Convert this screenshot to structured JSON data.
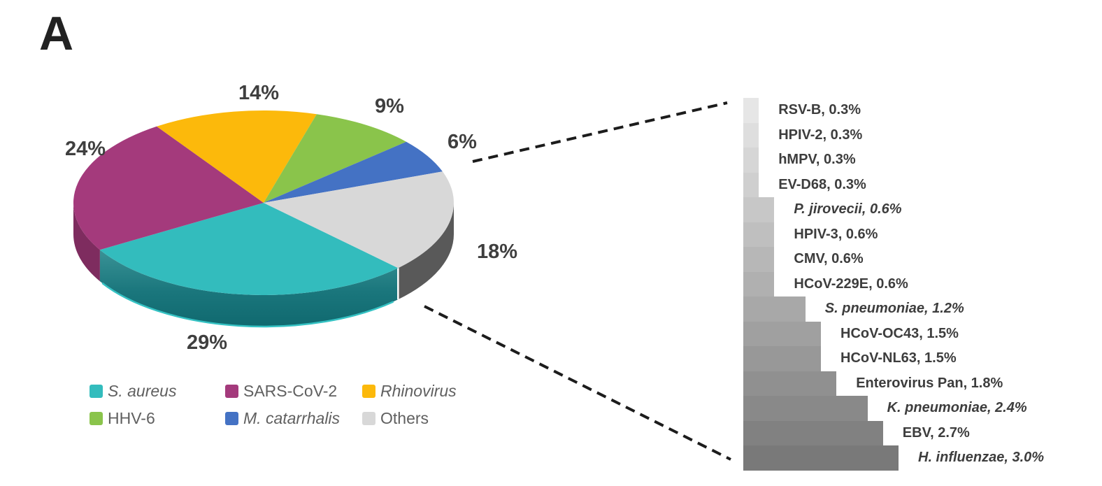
{
  "panel_label": "A",
  "chart_data": [
    {
      "type": "pie",
      "style": "3d",
      "start_angle_deg": 135,
      "direction": "clockwise",
      "slices": [
        {
          "label": "S. aureus",
          "value": 29,
          "display": "29%",
          "color": "#33BCBD",
          "side_color": "#1A767C",
          "italic": true
        },
        {
          "label": "SARS-CoV-2",
          "value": 24,
          "display": "24%",
          "color": "#A43A7C",
          "side_color": "#7E2C5F",
          "italic": false
        },
        {
          "label": "Rhinovirus",
          "value": 14,
          "display": "14%",
          "color": "#FCB90B",
          "side_color": "#C78F06",
          "italic": true
        },
        {
          "label": "HHV-6",
          "value": 9,
          "display": "9%",
          "color": "#8AC44B",
          "side_color": "#6A9A37",
          "italic": false
        },
        {
          "label": "M. catarrhalis",
          "value": 6,
          "display": "6%",
          "color": "#4472C4",
          "side_color": "#33559A",
          "italic": true
        },
        {
          "label": "Others",
          "value": 18,
          "display": "18%",
          "color": "#D8D8D8",
          "side_color": "#595959",
          "italic": false
        }
      ],
      "legend_position": "bottom"
    },
    {
      "type": "bar",
      "orientation": "horizontal",
      "note": "breakdown of the Others pie slice",
      "xlim": [
        0,
        3.0
      ],
      "bar_color_start": "#E6E6E6",
      "bar_color_end": "#797979",
      "items": [
        {
          "label": "RSV-B, 0.3%",
          "name": "RSV-B",
          "value": 0.3,
          "italic": false
        },
        {
          "label": "HPIV-2, 0.3%",
          "name": "HPIV-2",
          "value": 0.3,
          "italic": false
        },
        {
          "label": "hMPV, 0.3%",
          "name": "hMPV",
          "value": 0.3,
          "italic": false
        },
        {
          "label": "EV-D68, 0.3%",
          "name": "EV-D68",
          "value": 0.3,
          "italic": false
        },
        {
          "label": "P. jirovecii, 0.6%",
          "name": "P. jirovecii",
          "value": 0.6,
          "italic": true
        },
        {
          "label": "HPIV-3, 0.6%",
          "name": "HPIV-3",
          "value": 0.6,
          "italic": false
        },
        {
          "label": "CMV, 0.6%",
          "name": "CMV",
          "value": 0.6,
          "italic": false
        },
        {
          "label": "HCoV-229E, 0.6%",
          "name": "HCoV-229E",
          "value": 0.6,
          "italic": false
        },
        {
          "label": "S. pneumoniae, 1.2%",
          "name": "S. pneumoniae",
          "value": 1.2,
          "italic": true
        },
        {
          "label": "HCoV-OC43, 1.5%",
          "name": "HCoV-OC43",
          "value": 1.5,
          "italic": false
        },
        {
          "label": "HCoV-NL63, 1.5%",
          "name": "HCoV-NL63",
          "value": 1.5,
          "italic": false
        },
        {
          "label": "Enterovirus Pan, 1.8%",
          "name": "Enterovirus Pan",
          "value": 1.8,
          "italic": false
        },
        {
          "label": "K. pneumoniae, 2.4%",
          "name": "K. pneumoniae",
          "value": 2.4,
          "italic": true
        },
        {
          "label": "EBV, 2.7%",
          "name": "EBV",
          "value": 2.7,
          "italic": false
        },
        {
          "label": "H. influenzae, 3.0%",
          "name": "H. influenzae",
          "value": 3.0,
          "italic": true
        }
      ]
    }
  ],
  "legend": {
    "rows": 2,
    "columns": 3,
    "items_follow_pie_slice_order": true
  }
}
